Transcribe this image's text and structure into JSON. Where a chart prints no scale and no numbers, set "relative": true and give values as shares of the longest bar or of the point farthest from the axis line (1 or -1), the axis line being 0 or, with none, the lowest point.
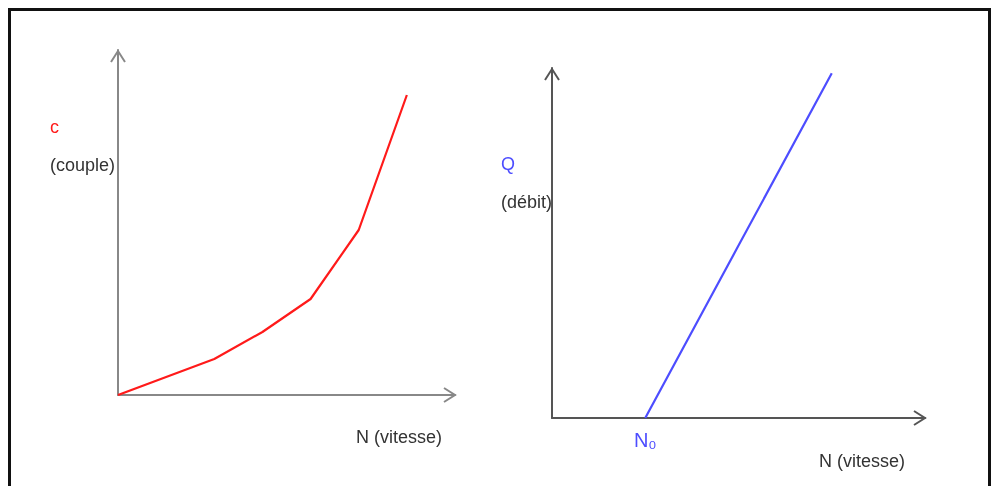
{
  "chart_data": [
    {
      "type": "line",
      "relative": true,
      "ylabel": "c\n(couple)",
      "xlabel": "N (vitesse)",
      "categories": [
        null,
        null,
        null,
        null,
        null,
        null,
        null,
        null
      ],
      "series": [
        {
          "color": "#ff1a1a",
          "values": [
            0,
            0.06,
            0.12,
            0.21,
            0.32,
            0.55,
            1,
            null
          ]
        }
      ],
      "marker": "none"
    },
    {
      "type": "line",
      "relative": true,
      "ylabel": "Q\n(débit)",
      "xlabel": "N (vitesse)",
      "categories": [
        null,
        null,
        null,
        null,
        null
      ],
      "annotations": [
        "N₀"
      ],
      "series": [
        {
          "color": "#4d4dff",
          "values": [
            null,
            0,
            0.5,
            1,
            null
          ]
        }
      ],
      "marker": "none"
    }
  ]
}
